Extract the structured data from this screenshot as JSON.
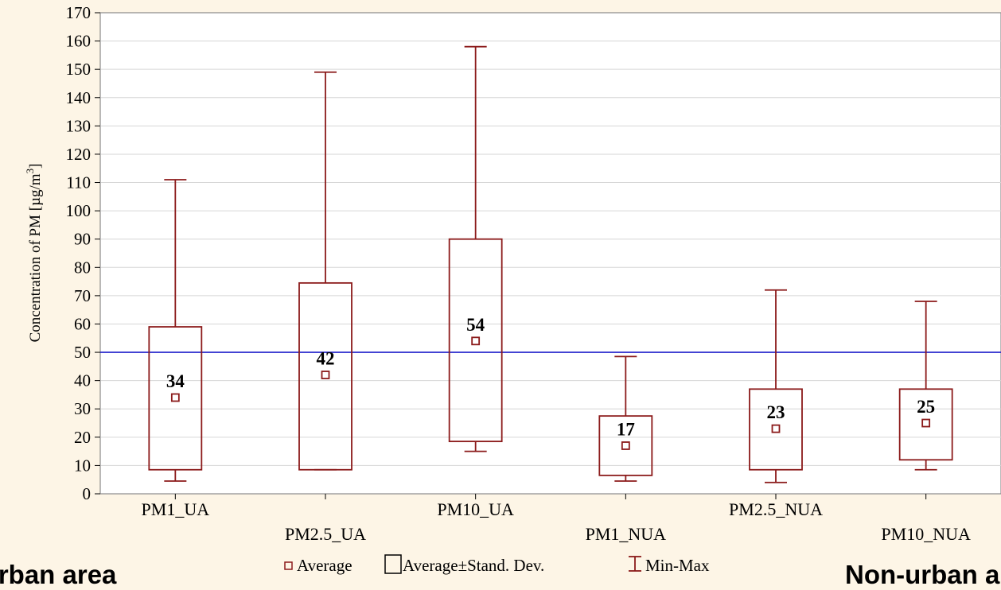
{
  "chart_data": {
    "type": "boxplot",
    "title": "",
    "ylabel": "Concentration of PM [µg/m3]",
    "ylabel_parts": {
      "main": "Concentration of PM [µg/m",
      "sup": "3",
      "close": "]"
    },
    "ylim": [
      0,
      170
    ],
    "yticks": [
      0,
      10,
      20,
      30,
      40,
      50,
      60,
      70,
      80,
      90,
      100,
      110,
      120,
      130,
      140,
      150,
      160,
      170
    ],
    "grid": true,
    "reference_line": {
      "value": 50,
      "color": "#2222cc"
    },
    "categories": [
      "PM1_UA",
      "PM2.5_UA",
      "PM10_UA",
      "PM1_NUA",
      "PM2.5_NUA",
      "PM10_NUA"
    ],
    "series": [
      {
        "category": "PM1_UA",
        "average": 34,
        "average_label": "34",
        "sd_low": 8.5,
        "sd_high": 59,
        "min": 4.5,
        "max": 111
      },
      {
        "category": "PM2.5_UA",
        "average": 42,
        "average_label": "42",
        "sd_low": 8.5,
        "sd_high": 74.5,
        "min": 8.5,
        "max": 149
      },
      {
        "category": "PM10_UA",
        "average": 54,
        "average_label": "54",
        "sd_low": 18.5,
        "sd_high": 90,
        "min": 15,
        "max": 158
      },
      {
        "category": "PM1_NUA",
        "average": 17,
        "average_label": "17",
        "sd_low": 6.5,
        "sd_high": 27.5,
        "min": 4.5,
        "max": 48.5
      },
      {
        "category": "PM2.5_NUA",
        "average": 23,
        "average_label": "23",
        "sd_low": 8.5,
        "sd_high": 37,
        "min": 4,
        "max": 72
      },
      {
        "category": "PM10_NUA",
        "average": 25,
        "average_label": "25",
        "sd_low": 12,
        "sd_high": 37,
        "min": 8.5,
        "max": 68
      }
    ],
    "legend": {
      "placement": "bottom",
      "items": [
        {
          "symbol": "small-square",
          "label": "Average"
        },
        {
          "symbol": "box",
          "label": "Average±Stand. Dev."
        },
        {
          "symbol": "whisker",
          "label": "Min-Max"
        }
      ]
    },
    "colors": {
      "series": "#8b1a1a",
      "reference": "#2222cc",
      "background": "#fdf5e6"
    }
  },
  "footer": {
    "left": "Urban area",
    "right": "Non-urban area"
  }
}
